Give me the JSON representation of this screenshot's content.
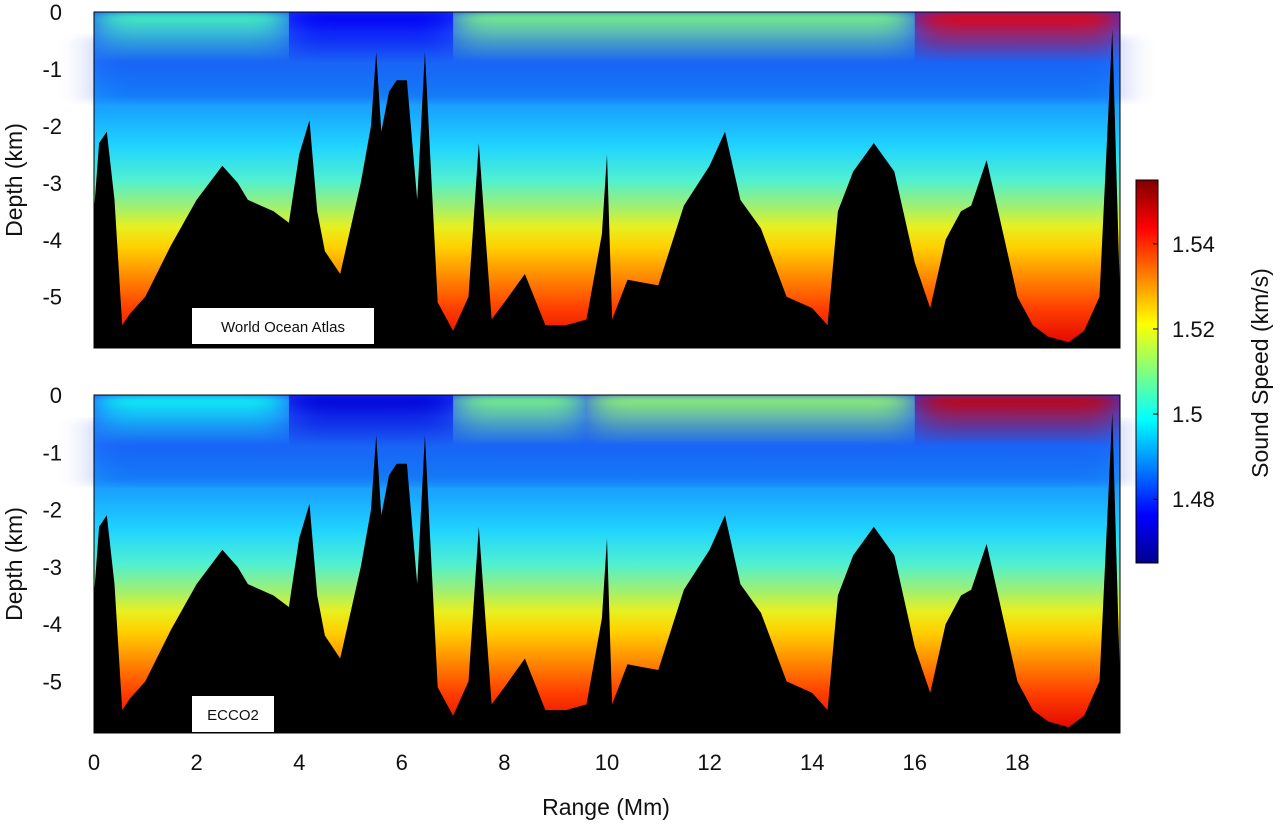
{
  "chart_data": [
    {
      "type": "heatmap",
      "panel_label": "World Ocean Atlas",
      "xlabel": "",
      "ylabel": "Depth (km)",
      "xlim": [
        0,
        20
      ],
      "ylim": [
        -5.9,
        0
      ],
      "y_ticks": [
        "0",
        "-1",
        "-2",
        "-3",
        "-4",
        "-5"
      ],
      "x_ticks": [],
      "variable": "sound speed (km/s)",
      "surface_bands": [
        {
          "range_start": 0,
          "range_end": 3.8,
          "sound_speed": 1.505
        },
        {
          "range_start": 3.8,
          "range_end": 7,
          "sound_speed": 1.475
        },
        {
          "range_start": 7,
          "range_end": 16,
          "sound_speed": 1.51
        },
        {
          "range_start": 16,
          "range_end": 20,
          "sound_speed": 1.545
        }
      ],
      "sound_channel_axis_km": -1.0,
      "bathymetry": {
        "range_Mm": [
          0,
          0.1,
          0.25,
          0.4,
          0.55,
          0.7,
          1,
          1.5,
          2,
          2.5,
          2.8,
          3,
          3.5,
          3.8,
          4,
          4.2,
          4.35,
          4.5,
          4.8,
          5.2,
          5.4,
          5.5,
          5.6,
          5.75,
          5.9,
          6.1,
          6.3,
          6.45,
          6.7,
          7,
          7.3,
          7.5,
          7.75,
          8,
          8.4,
          8.8,
          9.2,
          9.6,
          9.9,
          10,
          10.1,
          10.4,
          11,
          11.5,
          12,
          12.3,
          12.6,
          13,
          13.5,
          14,
          14.3,
          14.5,
          14.8,
          15.2,
          15.6,
          16,
          16.3,
          16.6,
          16.9,
          17.1,
          17.4,
          17.7,
          18,
          18.3,
          18.6,
          19,
          19.3,
          19.6,
          19.85,
          20
        ],
        "depth_km": [
          -3.5,
          -2.3,
          -2.1,
          -3.3,
          -5.5,
          -5.3,
          -5.0,
          -4.1,
          -3.3,
          -2.7,
          -3.0,
          -3.3,
          -3.5,
          -3.7,
          -2.5,
          -1.9,
          -3.5,
          -4.2,
          -4.6,
          -3.0,
          -2.0,
          -0.7,
          -2.1,
          -1.4,
          -1.2,
          -1.2,
          -3.3,
          -0.7,
          -5.1,
          -5.6,
          -5.0,
          -2.3,
          -5.4,
          -5.1,
          -4.6,
          -5.5,
          -5.5,
          -5.4,
          -3.9,
          -2.5,
          -5.4,
          -4.7,
          -4.8,
          -3.4,
          -2.7,
          -2.1,
          -3.3,
          -3.8,
          -5.0,
          -5.2,
          -5.5,
          -3.5,
          -2.8,
          -2.3,
          -2.8,
          -4.4,
          -5.2,
          -4.0,
          -3.5,
          -3.4,
          -2.6,
          -3.8,
          -5.0,
          -5.5,
          -5.7,
          -5.8,
          -5.6,
          -5.0,
          -0.3,
          -5.0
        ]
      }
    },
    {
      "type": "heatmap",
      "panel_label": "ECCO2",
      "xlabel": "Range (Mm)",
      "ylabel": "Depth (km)",
      "xlim": [
        0,
        20
      ],
      "ylim": [
        -5.9,
        0
      ],
      "y_ticks": [
        "0",
        "-1",
        "-2",
        "-3",
        "-4",
        "-5"
      ],
      "x_ticks": [
        "0",
        "2",
        "4",
        "6",
        "8",
        "10",
        "12",
        "14",
        "16",
        "18"
      ],
      "variable": "sound speed (km/s)",
      "surface_bands": [
        {
          "range_start": 0,
          "range_end": 3.8,
          "sound_speed": 1.5
        },
        {
          "range_start": 3.8,
          "range_end": 7,
          "sound_speed": 1.472
        },
        {
          "range_start": 7,
          "range_end": 9.6,
          "sound_speed": 1.51
        },
        {
          "range_start": 9.6,
          "range_end": 16,
          "sound_speed": 1.512
        },
        {
          "range_start": 16,
          "range_end": 20,
          "sound_speed": 1.548
        }
      ],
      "sound_channel_axis_km": -1.0,
      "bathymetry": {
        "range_Mm": [
          0,
          0.1,
          0.25,
          0.4,
          0.55,
          0.7,
          1,
          1.5,
          2,
          2.5,
          2.8,
          3,
          3.5,
          3.8,
          4,
          4.2,
          4.35,
          4.5,
          4.8,
          5.2,
          5.4,
          5.5,
          5.6,
          5.75,
          5.9,
          6.1,
          6.3,
          6.45,
          6.7,
          7,
          7.3,
          7.5,
          7.75,
          8,
          8.4,
          8.8,
          9.2,
          9.6,
          9.9,
          10,
          10.1,
          10.4,
          11,
          11.5,
          12,
          12.3,
          12.6,
          13,
          13.5,
          14,
          14.3,
          14.5,
          14.8,
          15.2,
          15.6,
          16,
          16.3,
          16.6,
          16.9,
          17.1,
          17.4,
          17.7,
          18,
          18.3,
          18.6,
          19,
          19.3,
          19.6,
          19.85,
          20
        ],
        "depth_km": [
          -3.5,
          -2.3,
          -2.1,
          -3.3,
          -5.5,
          -5.3,
          -5.0,
          -4.1,
          -3.3,
          -2.7,
          -3.0,
          -3.3,
          -3.5,
          -3.7,
          -2.5,
          -1.9,
          -3.5,
          -4.2,
          -4.6,
          -3.0,
          -2.0,
          -0.7,
          -2.1,
          -1.4,
          -1.2,
          -1.2,
          -3.3,
          -0.7,
          -5.1,
          -5.6,
          -5.0,
          -2.3,
          -5.4,
          -5.1,
          -4.6,
          -5.5,
          -5.5,
          -5.4,
          -3.9,
          -2.5,
          -5.4,
          -4.7,
          -4.8,
          -3.4,
          -2.7,
          -2.1,
          -3.3,
          -3.8,
          -5.0,
          -5.2,
          -5.5,
          -3.5,
          -2.8,
          -2.3,
          -2.8,
          -4.4,
          -5.2,
          -4.0,
          -3.5,
          -3.4,
          -2.6,
          -3.8,
          -5.0,
          -5.5,
          -5.7,
          -5.8,
          -5.6,
          -5.0,
          -0.3,
          -5.0
        ]
      }
    }
  ],
  "colorbar": {
    "label": "Sound Speed (km/s)",
    "range": [
      1.465,
      1.555
    ],
    "ticks": [
      {
        "value": 1.48,
        "label": "1.48"
      },
      {
        "value": 1.5,
        "label": "1.5"
      },
      {
        "value": 1.52,
        "label": "1.52"
      },
      {
        "value": 1.54,
        "label": "1.54"
      }
    ],
    "colormap": [
      "#00008f",
      "#0000ff",
      "#0080ff",
      "#00ffff",
      "#80ff80",
      "#ffff00",
      "#ff8000",
      "#ff0000",
      "#800000"
    ]
  },
  "colors": {
    "seafloor": "#000000"
  }
}
